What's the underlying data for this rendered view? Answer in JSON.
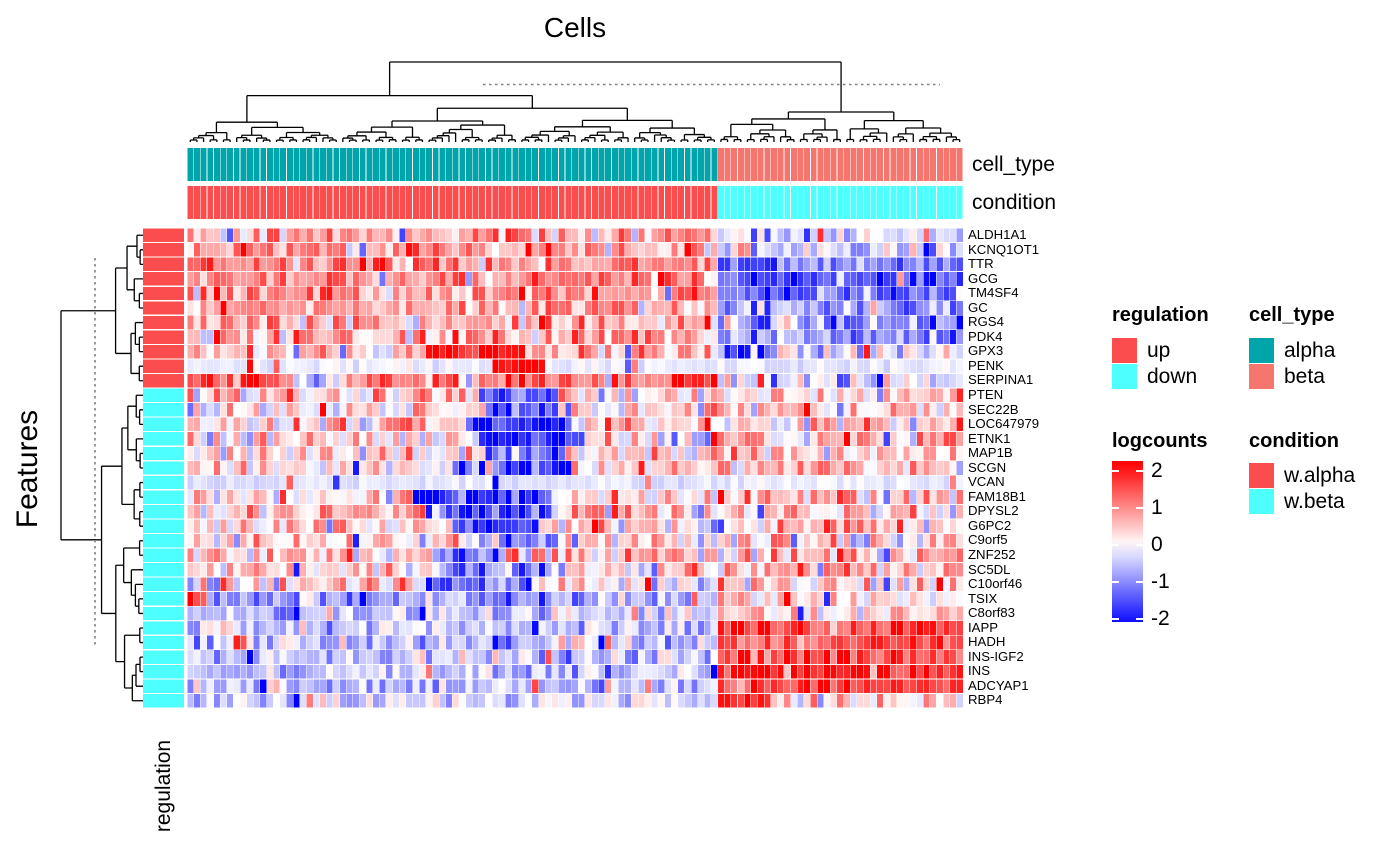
{
  "title": "Cells",
  "features_axis_label": "Features",
  "row_annotation_axis_label": "regulation",
  "column_annotations": {
    "cell_type_label": "cell_type",
    "condition_label": "condition"
  },
  "legends": {
    "regulation": {
      "title": "regulation",
      "entries": [
        {
          "label": "up",
          "color": "#FB4D4D"
        },
        {
          "label": "down",
          "color": "#4DFFFF"
        }
      ]
    },
    "cell_type": {
      "title": "cell_type",
      "entries": [
        {
          "label": "alpha",
          "color": "#00A5AC"
        },
        {
          "label": "beta",
          "color": "#F4766E"
        }
      ]
    },
    "logcounts": {
      "title": "logcounts",
      "ticks": [
        2,
        1,
        0,
        -1,
        -2
      ],
      "max_color": "#FF0000",
      "mid_color": "#FFFFFF",
      "min_color": "#0000FF"
    },
    "condition": {
      "title": "condition",
      "entries": [
        {
          "label": "w.alpha",
          "color": "#FB4D4D"
        },
        {
          "label": "w.beta",
          "color": "#4DFFFF"
        }
      ]
    }
  },
  "chart_data": {
    "type": "heatmap",
    "value_label": "logcounts",
    "value_range": [
      -2.2,
      2.2
    ],
    "dendrograms": {
      "columns": true,
      "rows": true,
      "cut_lines": "dashed gray"
    },
    "columns": {
      "total": 117,
      "groups": [
        {
          "name": "alpha",
          "condition": "w.alpha",
          "count": 80,
          "cell_type_color": "#00A5AC",
          "condition_color": "#FB4D4D"
        },
        {
          "name": "beta",
          "condition": "w.beta",
          "count": 37,
          "cell_type_color": "#F4766E",
          "condition_color": "#4DFFFF"
        }
      ]
    },
    "row_annotation_colors": {
      "up": "#FB4D4D",
      "down": "#4DFFFF"
    },
    "rows": [
      {
        "name": "ALDH1A1",
        "regulation": "up",
        "alpha_mean": 0.75,
        "beta_mean": -0.35,
        "noise": 0.55,
        "sub_blocks": []
      },
      {
        "name": "KCNQ1OT1",
        "regulation": "up",
        "alpha_mean": 0.85,
        "beta_mean": -0.45,
        "noise": 0.6,
        "sub_blocks": []
      },
      {
        "name": "TTR",
        "regulation": "up",
        "alpha_mean": 1.05,
        "beta_mean": -1.1,
        "noise": 0.5,
        "sub_blocks": []
      },
      {
        "name": "GCG",
        "regulation": "up",
        "alpha_mean": 1.1,
        "beta_mean": -1.45,
        "noise": 0.5,
        "sub_blocks": []
      },
      {
        "name": "TM4SF4",
        "regulation": "up",
        "alpha_mean": 0.95,
        "beta_mean": -1.15,
        "noise": 0.55,
        "sub_blocks": []
      },
      {
        "name": "GC",
        "regulation": "up",
        "alpha_mean": 0.85,
        "beta_mean": -1.05,
        "noise": 0.55,
        "sub_blocks": []
      },
      {
        "name": "RGS4",
        "regulation": "up",
        "alpha_mean": 0.7,
        "beta_mean": -0.95,
        "noise": 0.6,
        "sub_blocks": []
      },
      {
        "name": "PDK4",
        "regulation": "up",
        "alpha_mean": 0.75,
        "beta_mean": -0.85,
        "noise": 0.6,
        "sub_blocks": []
      },
      {
        "name": "GPX3",
        "regulation": "up",
        "alpha_mean": 0.45,
        "beta_mean": -0.35,
        "noise": 0.55,
        "sub_blocks": [
          {
            "group": "alpha",
            "from": 0.45,
            "to": 0.63,
            "value": 1.9
          },
          {
            "group": "beta",
            "from": 0,
            "to": 0.12,
            "value": -2.1
          }
        ]
      },
      {
        "name": "PENK",
        "regulation": "up",
        "alpha_mean": -0.15,
        "beta_mean": -0.2,
        "noise": 0.15,
        "sub_blocks": [
          {
            "group": "alpha",
            "from": 0.57,
            "to": 0.67,
            "value": 2.2
          }
        ]
      },
      {
        "name": "SERPINA1",
        "regulation": "up",
        "alpha_mean": 1.25,
        "beta_mean": -0.25,
        "noise": 0.5,
        "sub_blocks": [
          {
            "group": "alpha",
            "from": 0.2,
            "to": 0.28,
            "value": -0.9
          }
        ]
      },
      {
        "name": "PTEN",
        "regulation": "down",
        "alpha_mean": 0.4,
        "beta_mean": 0.45,
        "noise": 0.6,
        "sub_blocks": [
          {
            "group": "alpha",
            "from": 0.54,
            "to": 0.7,
            "value": -1.7
          }
        ]
      },
      {
        "name": "SEC22B",
        "regulation": "down",
        "alpha_mean": 0.35,
        "beta_mean": 0.45,
        "noise": 0.6,
        "sub_blocks": [
          {
            "group": "alpha",
            "from": 0.56,
            "to": 0.72,
            "value": -1.5
          }
        ]
      },
      {
        "name": "LOC647979",
        "regulation": "down",
        "alpha_mean": 0.3,
        "beta_mean": 0.5,
        "noise": 0.6,
        "sub_blocks": [
          {
            "group": "alpha",
            "from": 0.52,
            "to": 0.72,
            "value": -2.1
          }
        ]
      },
      {
        "name": "ETNK1",
        "regulation": "down",
        "alpha_mean": 0.4,
        "beta_mean": 0.5,
        "noise": 0.6,
        "sub_blocks": [
          {
            "group": "alpha",
            "from": 0.55,
            "to": 0.74,
            "value": -2.0
          }
        ]
      },
      {
        "name": "MAP1B",
        "regulation": "down",
        "alpha_mean": 0.25,
        "beta_mean": 0.6,
        "noise": 0.6,
        "sub_blocks": [
          {
            "group": "alpha",
            "from": 0.56,
            "to": 0.7,
            "value": -1.3
          }
        ]
      },
      {
        "name": "SCGN",
        "regulation": "down",
        "alpha_mean": 0.3,
        "beta_mean": 0.5,
        "noise": 0.6,
        "sub_blocks": [
          {
            "group": "alpha",
            "from": 0.5,
            "to": 0.72,
            "value": -1.6
          }
        ]
      },
      {
        "name": "VCAN",
        "regulation": "down",
        "alpha_mean": -0.25,
        "beta_mean": -0.15,
        "noise": 0.12,
        "sub_blocks": []
      },
      {
        "name": "FAM18B1",
        "regulation": "down",
        "alpha_mean": 0.25,
        "beta_mean": 0.5,
        "noise": 0.6,
        "sub_blocks": [
          {
            "group": "alpha",
            "from": 0.42,
            "to": 0.68,
            "value": -2.0
          }
        ]
      },
      {
        "name": "DPYSL2",
        "regulation": "down",
        "alpha_mean": 0.4,
        "beta_mean": 0.55,
        "noise": 0.6,
        "sub_blocks": [
          {
            "group": "alpha",
            "from": 0.45,
            "to": 0.68,
            "value": -1.7
          }
        ]
      },
      {
        "name": "G6PC2",
        "regulation": "down",
        "alpha_mean": 0.3,
        "beta_mean": 0.5,
        "noise": 0.6,
        "sub_blocks": [
          {
            "group": "alpha",
            "from": 0.5,
            "to": 0.66,
            "value": -1.4
          }
        ]
      },
      {
        "name": "C9orf5",
        "regulation": "down",
        "alpha_mean": 0.25,
        "beta_mean": 0.45,
        "noise": 0.6,
        "sub_blocks": [
          {
            "group": "alpha",
            "from": 0.55,
            "to": 0.7,
            "value": -1.0
          }
        ]
      },
      {
        "name": "ZNF252",
        "regulation": "down",
        "alpha_mean": 0.5,
        "beta_mean": 0.55,
        "noise": 0.65,
        "sub_blocks": [
          {
            "group": "alpha",
            "from": 0.46,
            "to": 0.6,
            "value": -1.1
          }
        ]
      },
      {
        "name": "SC5DL",
        "regulation": "down",
        "alpha_mean": 0.3,
        "beta_mean": 0.5,
        "noise": 0.6,
        "sub_blocks": [
          {
            "group": "alpha",
            "from": 0.5,
            "to": 0.68,
            "value": -1.2
          }
        ]
      },
      {
        "name": "C10orf46",
        "regulation": "down",
        "alpha_mean": 0.2,
        "beta_mean": 0.5,
        "noise": 0.6,
        "sub_blocks": [
          {
            "group": "alpha",
            "from": 0.45,
            "to": 0.65,
            "value": -1.4
          }
        ]
      },
      {
        "name": "TSIX",
        "regulation": "down",
        "alpha_mean": -0.85,
        "beta_mean": 0.3,
        "noise": 0.5,
        "sub_blocks": [
          {
            "group": "alpha",
            "from": 0,
            "to": 0.03,
            "value": 1.6
          }
        ]
      },
      {
        "name": "C8orf83",
        "regulation": "down",
        "alpha_mean": -0.5,
        "beta_mean": 0.25,
        "noise": 0.45,
        "sub_blocks": []
      },
      {
        "name": "IAPP",
        "regulation": "down",
        "alpha_mean": -0.5,
        "beta_mean": 1.7,
        "noise": 0.5,
        "sub_blocks": []
      },
      {
        "name": "HADH",
        "regulation": "down",
        "alpha_mean": -0.45,
        "beta_mean": 1.5,
        "noise": 0.5,
        "sub_blocks": []
      },
      {
        "name": "INS-IGF2",
        "regulation": "down",
        "alpha_mean": -0.5,
        "beta_mean": 1.6,
        "noise": 0.5,
        "sub_blocks": []
      },
      {
        "name": "INS",
        "regulation": "down",
        "alpha_mean": -0.55,
        "beta_mean": 1.9,
        "noise": 0.45,
        "sub_blocks": []
      },
      {
        "name": "ADCYAP1",
        "regulation": "down",
        "alpha_mean": -0.5,
        "beta_mean": 1.8,
        "noise": 0.5,
        "sub_blocks": []
      },
      {
        "name": "RBP4",
        "regulation": "down",
        "alpha_mean": -0.35,
        "beta_mean": 0.35,
        "noise": 0.45,
        "sub_blocks": [
          {
            "group": "beta",
            "from": 0,
            "to": 0.2,
            "value": 1.9
          }
        ]
      }
    ]
  }
}
